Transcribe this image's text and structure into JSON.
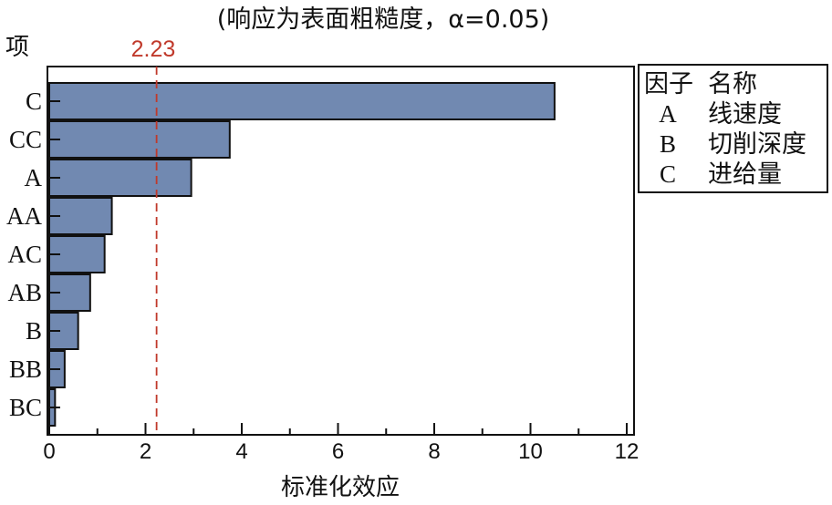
{
  "chart_data": {
    "type": "bar",
    "orientation": "horizontal",
    "title": "(响应为表面粗糙度，α=0.05)",
    "ylabel": "项",
    "xlabel": "标准化效应",
    "categories": [
      "C",
      "CC",
      "A",
      "AA",
      "AC",
      "AB",
      "B",
      "BB",
      "BC"
    ],
    "values": [
      10.5,
      3.75,
      2.95,
      1.3,
      1.15,
      0.85,
      0.6,
      0.32,
      0.12
    ],
    "xlim": [
      0,
      12
    ],
    "xticks": [
      "0",
      "2",
      "4",
      "6",
      "8",
      "10",
      "12"
    ],
    "reference_line": {
      "value": 2.23,
      "label": "2.23",
      "color": "#c0392b"
    },
    "bar_color": "#7189b1",
    "grid": false,
    "legend": {
      "placement": "right",
      "header": [
        "因子",
        "名称"
      ],
      "rows": [
        {
          "key": "A",
          "name": "线速度"
        },
        {
          "key": "B",
          "name": "切削深度"
        },
        {
          "key": "C",
          "name": "进给量"
        }
      ]
    }
  }
}
